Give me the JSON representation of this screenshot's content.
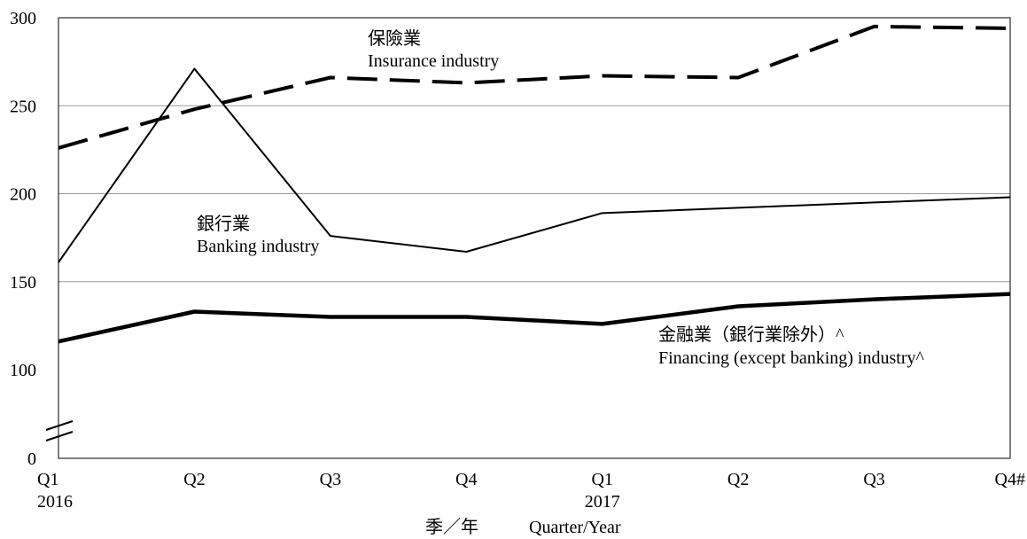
{
  "chart_data": {
    "type": "line",
    "categories": [
      "Q1",
      "Q2",
      "Q3",
      "Q4",
      "Q1",
      "Q2",
      "Q3",
      "Q4#"
    ],
    "year_labels": [
      "2016",
      "",
      "",
      "",
      "2017",
      "",
      "",
      ""
    ],
    "y_ticks": [
      "0",
      "100",
      "150",
      "200",
      "250",
      "300"
    ],
    "ylim": [
      100,
      300
    ],
    "axis_break": true,
    "grid": true,
    "xlabel_zh": "季／年",
    "xlabel_en": "Quarter/Year",
    "series": [
      {
        "name_zh": "保險業",
        "name_en": "Insurance industry",
        "style": "dashed",
        "color": "#000000",
        "values": [
          226,
          248,
          266,
          263,
          267,
          266,
          295,
          294
        ]
      },
      {
        "name_zh": "銀行業",
        "name_en": "Banking industry",
        "style": "thin",
        "color": "#000000",
        "values": [
          161,
          271,
          176,
          167,
          189,
          192,
          195,
          198
        ]
      },
      {
        "name_zh": "金融業（銀行業除外）^",
        "name_en": "Financing (except banking) industry^",
        "style": "thick",
        "color": "#000000",
        "values": [
          116,
          133,
          130,
          130,
          126,
          136,
          140,
          143
        ]
      }
    ]
  }
}
